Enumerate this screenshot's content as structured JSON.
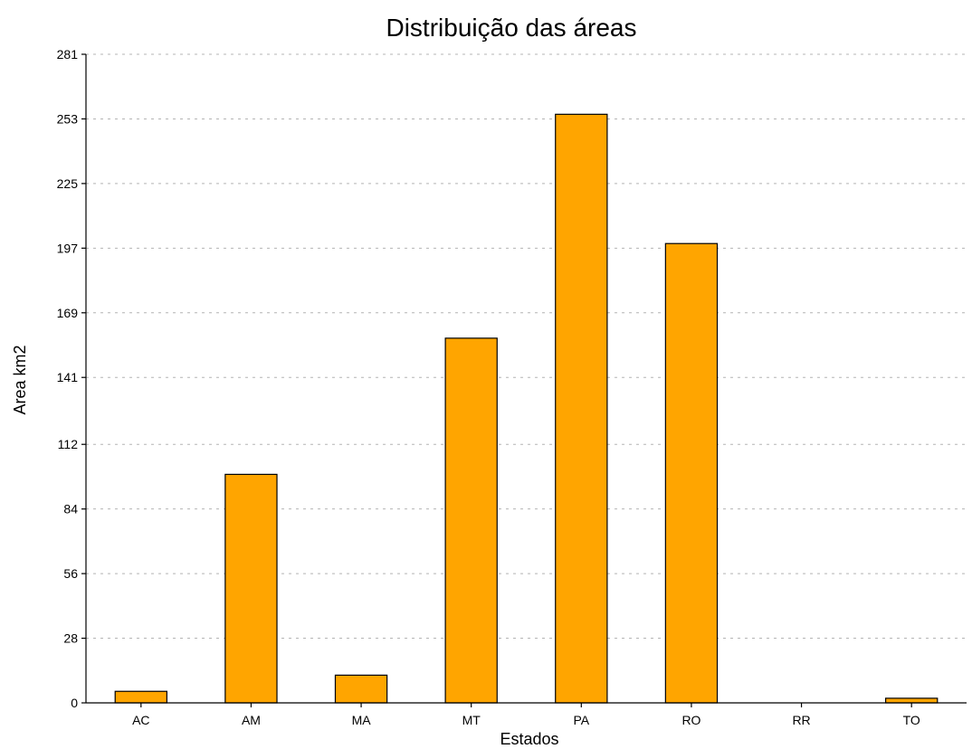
{
  "chart_data": {
    "type": "bar",
    "title": "Distribuição das áreas",
    "xlabel": "Estados",
    "ylabel": "Area km2",
    "categories": [
      "AC",
      "AM",
      "MA",
      "MT",
      "PA",
      "RO",
      "RR",
      "TO"
    ],
    "values": [
      5,
      99,
      12,
      158,
      255,
      199,
      0,
      2
    ],
    "ylim": [
      0,
      281
    ],
    "yticks": [
      "0",
      "28",
      "56",
      "84",
      "112",
      "141",
      "169",
      "197",
      "225",
      "253",
      "281"
    ],
    "grid": true,
    "bar_color": "#ffa500"
  }
}
